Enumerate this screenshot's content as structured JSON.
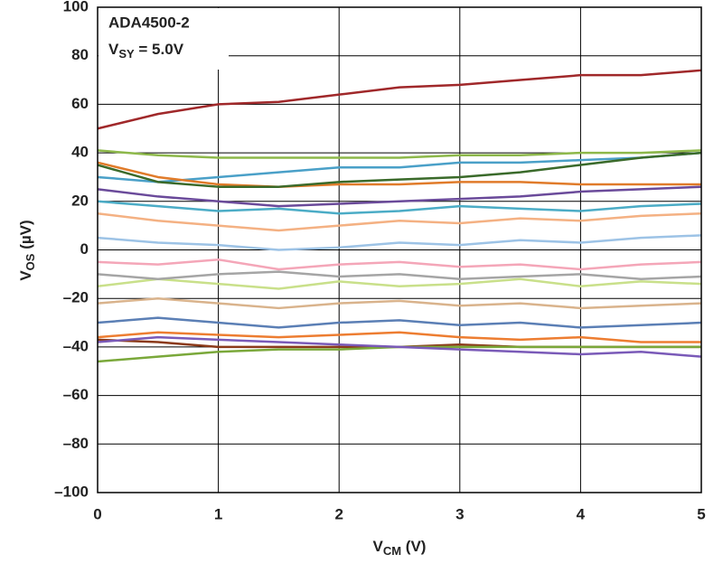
{
  "chart_data": {
    "type": "line",
    "annotation": {
      "line1": "ADA4500-2",
      "line2_main": "V",
      "line2_sub": "SY",
      "line2_rest": " = 5.0V"
    },
    "ylabel": {
      "main": "V",
      "sub": "OS",
      "rest": " (µV)"
    },
    "xlabel": {
      "main": "V",
      "sub": "CM",
      "rest": " (V)"
    },
    "x": [
      0,
      0.5,
      1,
      1.5,
      2,
      2.5,
      3,
      3.5,
      4,
      4.5,
      5
    ],
    "xlim": [
      0,
      5
    ],
    "xticks": [
      0,
      1,
      2,
      3,
      4,
      5
    ],
    "ylim": [
      -100,
      100
    ],
    "yticks": [
      {
        "value": -100,
        "label": "–100"
      },
      {
        "value": -80,
        "label": "–80"
      },
      {
        "value": -60,
        "label": "–60"
      },
      {
        "value": -40,
        "label": "–40"
      },
      {
        "value": -20,
        "label": "–20"
      },
      0,
      20,
      40,
      60,
      80,
      100
    ],
    "grid": true,
    "series": [
      {
        "color": "#a0282a",
        "values": [
          50,
          56,
          60,
          61,
          64,
          67,
          68,
          70,
          72,
          72,
          74
        ]
      },
      {
        "color": "#8db84a",
        "values": [
          41,
          39,
          38,
          38,
          38,
          38,
          39,
          39,
          40,
          40,
          41
        ]
      },
      {
        "color": "#4aa0c8",
        "values": [
          30,
          28,
          30,
          32,
          34,
          34,
          36,
          36,
          37,
          38,
          40
        ]
      },
      {
        "color": "#e07b2a",
        "values": [
          36,
          30,
          27,
          26,
          27,
          27,
          28,
          28,
          27,
          27,
          27
        ]
      },
      {
        "color": "#3a6a2a",
        "values": [
          35,
          28,
          26,
          26,
          28,
          29,
          30,
          32,
          35,
          38,
          40
        ]
      },
      {
        "color": "#6a4a9a",
        "values": [
          25,
          22,
          20,
          18,
          19,
          20,
          21,
          22,
          24,
          25,
          26
        ]
      },
      {
        "color": "#f4b183",
        "values": [
          15,
          12,
          10,
          8,
          10,
          12,
          11,
          13,
          12,
          14,
          15
        ]
      },
      {
        "color": "#9dc3e6",
        "values": [
          5,
          3,
          2,
          0,
          1,
          3,
          2,
          4,
          3,
          5,
          6
        ]
      },
      {
        "color": "#f4a6b8",
        "values": [
          -5,
          -6,
          -4,
          -8,
          -6,
          -5,
          -7,
          -6,
          -8,
          -6,
          -5
        ]
      },
      {
        "color": "#c9e08a",
        "values": [
          -15,
          -12,
          -14,
          -16,
          -13,
          -15,
          -14,
          -12,
          -15,
          -13,
          -14
        ]
      },
      {
        "color": "#d9b38c",
        "values": [
          -22,
          -20,
          -22,
          -24,
          -22,
          -21,
          -23,
          -22,
          -24,
          -23,
          -22
        ]
      },
      {
        "color": "#5b7fb5",
        "values": [
          -30,
          -28,
          -30,
          -32,
          -30,
          -29,
          -31,
          -30,
          -32,
          -31,
          -30
        ]
      },
      {
        "color": "#ed7d31",
        "values": [
          -36,
          -34,
          -35,
          -36,
          -35,
          -34,
          -36,
          -37,
          -36,
          -38,
          -38
        ]
      },
      {
        "color": "#8b3a1a",
        "values": [
          -37,
          -38,
          -40,
          -40,
          -40,
          -40,
          -39,
          -40,
          -40,
          -40,
          -40
        ]
      },
      {
        "color": "#7aa83a",
        "values": [
          -46,
          -44,
          -42,
          -41,
          -41,
          -40,
          -40,
          -40,
          -40,
          -40,
          -40
        ]
      },
      {
        "color": "#7a5ab8",
        "values": [
          -38,
          -36,
          -37,
          -38,
          -39,
          -40,
          -41,
          -42,
          -43,
          -42,
          -44
        ]
      },
      {
        "color": "#4bacc6",
        "values": [
          20,
          18,
          16,
          17,
          15,
          16,
          18,
          17,
          16,
          18,
          19
        ]
      },
      {
        "color": "#a5a5a5",
        "values": [
          -10,
          -12,
          -10,
          -9,
          -11,
          -10,
          -12,
          -11,
          -10,
          -12,
          -11
        ]
      }
    ]
  }
}
